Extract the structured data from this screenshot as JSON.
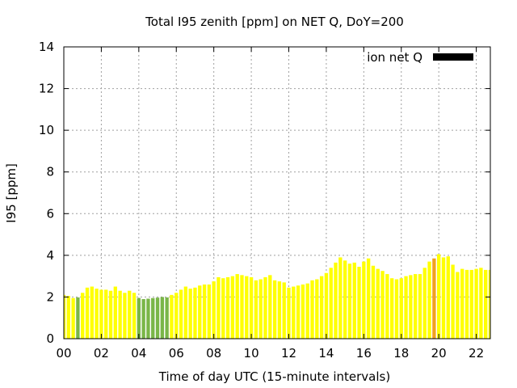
{
  "chart_data": {
    "type": "bar",
    "title": "Total I95 zenith [ppm] on NET Q, DoY=200",
    "xlabel": "Time of day UTC (15-minute intervals)",
    "ylabel": "I95 [ppm]",
    "ylim": [
      0,
      14
    ],
    "yticks": [
      0,
      2,
      4,
      6,
      8,
      10,
      12,
      14
    ],
    "xlim_hours": [
      0,
      22.75
    ],
    "xtick_labels": [
      "00",
      "02",
      "04",
      "06",
      "08",
      "10",
      "12",
      "14",
      "16",
      "18",
      "20",
      "22"
    ],
    "grid": true,
    "legend_position": "top-right",
    "series": [
      {
        "name": "ion net Q",
        "legend_color": "#000000",
        "interval_minutes": 15,
        "start_time": "00:00",
        "values": [
          2.1,
          2.05,
          1.95,
          1.98,
          2.2,
          2.45,
          2.5,
          2.4,
          2.35,
          2.35,
          2.3,
          2.5,
          2.3,
          2.2,
          2.3,
          2.2,
          1.95,
          1.9,
          1.92,
          1.95,
          1.97,
          2.0,
          1.98,
          2.1,
          2.2,
          2.35,
          2.5,
          2.4,
          2.45,
          2.55,
          2.6,
          2.6,
          2.75,
          2.95,
          2.9,
          2.95,
          3.0,
          3.1,
          3.05,
          3.0,
          2.95,
          2.8,
          2.85,
          2.95,
          3.05,
          2.8,
          2.75,
          2.7,
          2.45,
          2.5,
          2.55,
          2.6,
          2.65,
          2.8,
          2.85,
          3.0,
          3.15,
          3.4,
          3.65,
          3.9,
          3.75,
          3.6,
          3.65,
          3.45,
          3.7,
          3.85,
          3.5,
          3.35,
          3.25,
          3.1,
          2.9,
          2.85,
          2.9,
          3.0,
          3.05,
          3.1,
          3.1,
          3.4,
          3.7,
          3.85,
          4.05,
          3.9,
          3.95,
          3.55,
          3.2,
          3.35,
          3.3,
          3.3,
          3.35,
          3.4,
          3.3,
          3.3
        ],
        "colors": {
          "default": "#ffff00",
          "green": "#7ab648",
          "orange": "#f0a020"
        },
        "green_indices": [
          3,
          16,
          17,
          18,
          19,
          20,
          21,
          22
        ],
        "orange_indices": [
          79
        ]
      }
    ]
  }
}
